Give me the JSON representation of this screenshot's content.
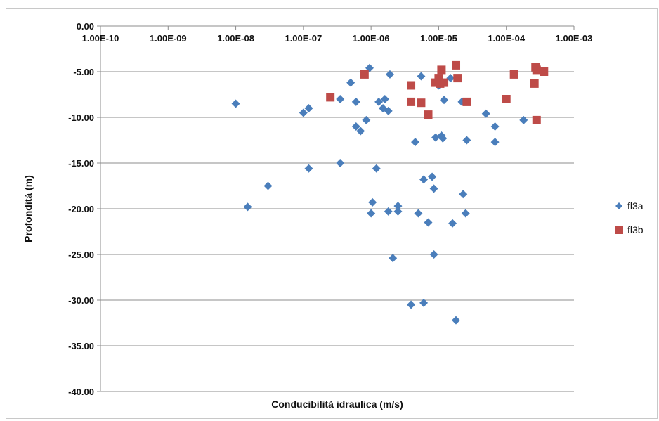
{
  "chart_data": {
    "type": "scatter",
    "title": "",
    "xlabel": "Conducibilità idraulica (m/s)",
    "ylabel": "Profondità (m)",
    "x_scale": "log",
    "xlim": [
      1e-10,
      0.001
    ],
    "ylim": [
      -40,
      0
    ],
    "x_ticks": [
      "1.00E-10",
      "1.00E-09",
      "1.00E-08",
      "1.00E-07",
      "1.00E-06",
      "1.00E-05",
      "1.00E-04",
      "1.00E-03"
    ],
    "y_ticks": [
      "0.00",
      "-5.00",
      "-10.00",
      "-15.00",
      "-20.00",
      "-25.00",
      "-30.00",
      "-35.00",
      "-40.00"
    ],
    "x_axis_position": "top",
    "grid": "horizontal",
    "legend_position": "right",
    "series": [
      {
        "name": "fl3a",
        "marker": "diamond",
        "color": "#4a7ebb",
        "points": [
          [
            1e-08,
            -8.5
          ],
          [
            1.5e-08,
            -19.8
          ],
          [
            3e-08,
            -17.5
          ],
          [
            1e-07,
            -9.5
          ],
          [
            1.2e-07,
            -9.0
          ],
          [
            1.2e-07,
            -15.6
          ],
          [
            3.5e-07,
            -8.0
          ],
          [
            3.5e-07,
            -15.0
          ],
          [
            5e-07,
            -6.2
          ],
          [
            6e-07,
            -8.3
          ],
          [
            6e-07,
            -11.0
          ],
          [
            7e-07,
            -11.5
          ],
          [
            8.5e-07,
            -10.3
          ],
          [
            9.5e-07,
            -4.6
          ],
          [
            1e-06,
            -20.5
          ],
          [
            1.05e-06,
            -19.3
          ],
          [
            1.2e-06,
            -15.6
          ],
          [
            1.3e-06,
            -8.3
          ],
          [
            1.5e-06,
            -9.0
          ],
          [
            1.6e-06,
            -8.0
          ],
          [
            1.8e-06,
            -9.3
          ],
          [
            1.8e-06,
            -20.3
          ],
          [
            1.9e-06,
            -5.3
          ],
          [
            2.1e-06,
            -25.4
          ],
          [
            2.5e-06,
            -20.3
          ],
          [
            2.5e-06,
            -19.7
          ],
          [
            3.9e-06,
            -30.5
          ],
          [
            4.5e-06,
            -12.7
          ],
          [
            5e-06,
            -20.5
          ],
          [
            5.5e-06,
            -5.5
          ],
          [
            6e-06,
            -30.3
          ],
          [
            6e-06,
            -16.8
          ],
          [
            7e-06,
            -21.5
          ],
          [
            8e-06,
            -16.5
          ],
          [
            8.5e-06,
            -17.8
          ],
          [
            8.5e-06,
            -25.0
          ],
          [
            9e-06,
            -12.2
          ],
          [
            1e-05,
            -6.5
          ],
          [
            1.1e-05,
            -12.0
          ],
          [
            1.15e-05,
            -12.3
          ],
          [
            1.2e-05,
            -8.1
          ],
          [
            1.5e-05,
            -5.7
          ],
          [
            1.6e-05,
            -21.6
          ],
          [
            1.8e-05,
            -32.2
          ],
          [
            2.2e-05,
            -8.3
          ],
          [
            2.3e-05,
            -18.4
          ],
          [
            2.5e-05,
            -20.5
          ],
          [
            2.6e-05,
            -12.5
          ],
          [
            5e-05,
            -9.6
          ],
          [
            6.8e-05,
            -11.0
          ],
          [
            6.8e-05,
            -12.7
          ],
          [
            0.00018,
            -10.3
          ]
        ]
      },
      {
        "name": "fl3b",
        "marker": "square",
        "color": "#be4b48",
        "points": [
          [
            2.5e-07,
            -7.8
          ],
          [
            8e-07,
            -5.3
          ],
          [
            3.9e-06,
            -6.5
          ],
          [
            3.9e-06,
            -8.3
          ],
          [
            5.5e-06,
            -8.4
          ],
          [
            7e-06,
            -9.7
          ],
          [
            9e-06,
            -6.2
          ],
          [
            1e-05,
            -5.7
          ],
          [
            1.05e-05,
            -6.3
          ],
          [
            1.1e-05,
            -4.8
          ],
          [
            1.2e-05,
            -6.2
          ],
          [
            1.8e-05,
            -4.3
          ],
          [
            1.9e-05,
            -5.7
          ],
          [
            2.6e-05,
            -8.3
          ],
          [
            0.0001,
            -8.0
          ],
          [
            0.00013,
            -5.3
          ],
          [
            0.00026,
            -6.3
          ],
          [
            0.00027,
            -4.5
          ],
          [
            0.00028,
            -10.3
          ],
          [
            0.00028,
            -4.8
          ],
          [
            0.00036,
            -5.0
          ]
        ]
      }
    ]
  }
}
